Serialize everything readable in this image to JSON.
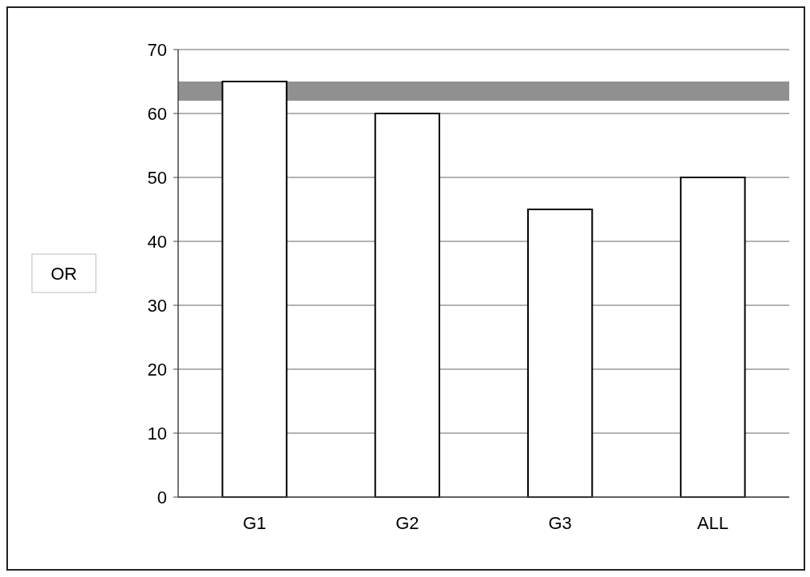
{
  "chart_data": {
    "type": "bar",
    "ylabel": "OR",
    "categories": [
      "G1",
      "G2",
      "G3",
      "ALL"
    ],
    "values": [
      65,
      60,
      45,
      50
    ],
    "color": "#ffffff",
    "ylim": [
      0,
      70
    ],
    "yticks": [
      0,
      10,
      20,
      30,
      40,
      50,
      60,
      70
    ],
    "grid": "y",
    "bands": [
      {
        "axis": "y",
        "from": 62,
        "to": 65,
        "color": "#6b6b6b"
      }
    ]
  }
}
